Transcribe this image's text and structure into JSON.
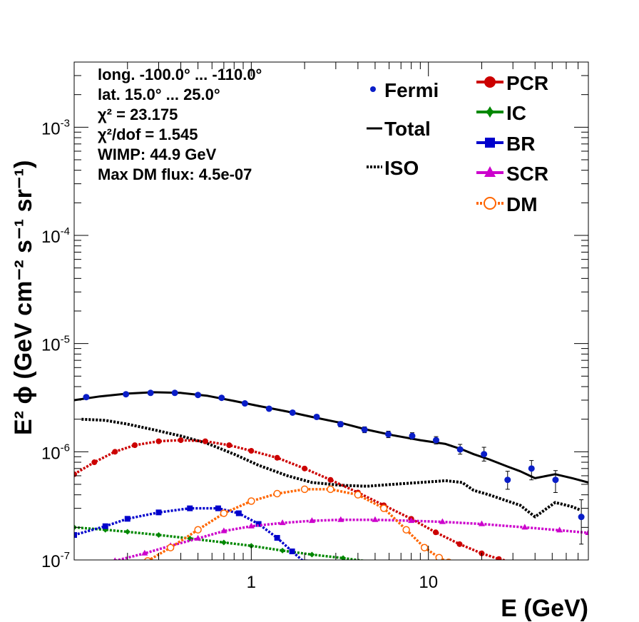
{
  "chart_data": {
    "type": "line",
    "title": "",
    "xlabel": "E (GeV)",
    "ylabel": "E² ϕ (GeV cm⁻² s⁻¹ sr⁻¹)",
    "x_scale": "log",
    "y_scale": "log",
    "xlim": [
      0.1,
      80
    ],
    "ylim": [
      1e-07,
      0.004
    ],
    "grid": false,
    "x_ticks": [
      {
        "v": 1,
        "label": "1"
      },
      {
        "v": 10,
        "label": "10"
      }
    ],
    "y_ticks": [
      {
        "v": 1e-07,
        "base": "10",
        "exp": "-7"
      },
      {
        "v": 1e-06,
        "base": "10",
        "exp": "-6"
      },
      {
        "v": 1e-05,
        "base": "10",
        "exp": "-5"
      },
      {
        "v": 0.0001,
        "base": "10",
        "exp": "-4"
      },
      {
        "v": 0.001,
        "base": "10",
        "exp": "-3"
      }
    ],
    "info_lines": [
      "long. -100.0° ... -110.0°",
      "lat. 15.0° ... 25.0°",
      "χ² = 23.175",
      "χ²/dof = 1.545",
      "WIMP: 44.9 GeV",
      "Max DM flux: 4.5e-07"
    ],
    "legend": {
      "left": [
        {
          "label": "Fermi",
          "key": "fermi"
        },
        {
          "label": "Total",
          "key": "total"
        },
        {
          "label": "ISO",
          "key": "iso"
        }
      ],
      "right": [
        {
          "label": "PCR",
          "key": "pcr"
        },
        {
          "label": "IC",
          "key": "ic"
        },
        {
          "label": "BR",
          "key": "br"
        },
        {
          "label": "SCR",
          "key": "scr"
        },
        {
          "label": "DM",
          "key": "dm"
        }
      ]
    },
    "colors": {
      "fermi": "#0a1ec8",
      "total": "#000000",
      "iso": "#000000",
      "pcr": "#cc0000",
      "ic": "#008800",
      "br": "#0000cc",
      "scr": "#cc00cc",
      "dm": "#ff6600"
    },
    "fermi": {
      "x": [
        0.117,
        0.196,
        0.27,
        0.37,
        0.5,
        0.68,
        0.92,
        1.26,
        1.71,
        2.34,
        3.19,
        4.36,
        5.94,
        8.1,
        11.05,
        15.1,
        20.6,
        28.0,
        38.2,
        52.2,
        73.0
      ],
      "y": [
        3.2e-06,
        3.4e-06,
        3.5e-06,
        3.5e-06,
        3.35e-06,
        3.15e-06,
        2.8e-06,
        2.5e-06,
        2.3e-06,
        2.1e-06,
        1.8e-06,
        1.6e-06,
        1.45e-06,
        1.4e-06,
        1.28e-06,
        1.05e-06,
        9.5e-07,
        5.5e-07,
        7e-07,
        5.5e-07,
        2.5e-07
      ],
      "err_lo": [
        1e-07,
        1e-07,
        1e-07,
        1e-07,
        1e-07,
        1e-07,
        1e-07,
        1e-07,
        1e-07,
        1e-07,
        1e-07,
        1e-07,
        1e-07,
        1e-07,
        1e-07,
        1e-07,
        1.3e-07,
        1e-07,
        1.5e-07,
        1.3e-07,
        1.1e-07
      ],
      "err_hi": [
        1e-07,
        1e-07,
        1e-07,
        1e-07,
        1e-07,
        1e-07,
        1e-07,
        1e-07,
        1e-07,
        1e-07,
        1e-07,
        1e-07,
        1e-07,
        1e-07,
        1e-07,
        1.2e-07,
        1.5e-07,
        1.1e-07,
        1.3e-07,
        1.2e-07,
        1.1e-07
      ]
    },
    "series": [
      {
        "key": "total",
        "x": [
          0.1,
          0.14,
          0.2,
          0.28,
          0.4,
          0.56,
          0.8,
          1.1,
          1.6,
          2.2,
          3.2,
          4.5,
          6.3,
          9,
          12.5,
          15.5,
          18,
          22,
          28,
          33,
          40,
          52,
          65,
          80
        ],
        "y": [
          3e-06,
          3.25e-06,
          3.45e-06,
          3.55e-06,
          3.5e-06,
          3.3e-06,
          2.95e-06,
          2.65e-06,
          2.35e-06,
          2.1e-06,
          1.85e-06,
          1.6e-06,
          1.42e-06,
          1.28e-06,
          1.18e-06,
          1.05e-06,
          9.5e-07,
          8.5e-07,
          7.3e-07,
          6.6e-07,
          5.7e-07,
          6.2e-07,
          5.7e-07,
          5.2e-07
        ]
      },
      {
        "key": "iso",
        "x": [
          0.11,
          0.15,
          0.2,
          0.28,
          0.4,
          0.56,
          0.8,
          1.1,
          1.6,
          2.2,
          3.2,
          4.5,
          6.3,
          9,
          12.5,
          15.5,
          18,
          22,
          28,
          33,
          40,
          52,
          65,
          72
        ],
        "y": [
          2e-06,
          1.95e-06,
          1.8e-06,
          1.6e-06,
          1.4e-06,
          1.2e-06,
          9.5e-07,
          7.5e-07,
          6e-07,
          5.2e-07,
          4.9e-07,
          4.8e-07,
          5e-07,
          5.2e-07,
          5.4e-07,
          5.2e-07,
          4.4e-07,
          4e-07,
          3.5e-07,
          3.2e-07,
          2.5e-07,
          3.4e-07,
          3.1e-07,
          2.9e-07
        ]
      },
      {
        "key": "pcr",
        "x": [
          0.1,
          0.13,
          0.17,
          0.22,
          0.3,
          0.4,
          0.55,
          0.75,
          1.0,
          1.4,
          2.0,
          2.8,
          4.0,
          5.6,
          8,
          11,
          15,
          20,
          25,
          30
        ],
        "y": [
          6.2e-07,
          8e-07,
          1e-06,
          1.15e-06,
          1.25e-06,
          1.28e-06,
          1.25e-06,
          1.15e-06,
          1.02e-06,
          8.8e-07,
          7e-07,
          5.5e-07,
          4.2e-07,
          3.2e-07,
          2.4e-07,
          1.8e-07,
          1.4e-07,
          1.15e-07,
          1.02e-07,
          9.5e-08
        ]
      },
      {
        "key": "ic",
        "x": [
          0.1,
          0.15,
          0.2,
          0.3,
          0.45,
          0.7,
          1.0,
          1.5,
          2.2,
          3.3,
          5
        ],
        "y": [
          2e-07,
          1.9e-07,
          1.82e-07,
          1.7e-07,
          1.58e-07,
          1.45e-07,
          1.35e-07,
          1.22e-07,
          1.12e-07,
          1.04e-07,
          9.5e-08
        ]
      },
      {
        "key": "br",
        "x": [
          0.1,
          0.15,
          0.2,
          0.3,
          0.45,
          0.65,
          0.85,
          1.1,
          1.4,
          1.7,
          2.0
        ],
        "y": [
          1.7e-07,
          2.05e-07,
          2.4e-07,
          2.75e-07,
          3e-07,
          3e-07,
          2.7e-07,
          2.15e-07,
          1.6e-07,
          1.2e-07,
          9.5e-08
        ]
      },
      {
        "key": "scr",
        "x": [
          0.17,
          0.25,
          0.35,
          0.5,
          0.7,
          1.0,
          1.5,
          2.2,
          3.2,
          5,
          8,
          12,
          20,
          35,
          55,
          80
        ],
        "y": [
          9.8e-08,
          1.15e-07,
          1.35e-07,
          1.58e-07,
          1.85e-07,
          2.05e-07,
          2.2e-07,
          2.3e-07,
          2.35e-07,
          2.35e-07,
          2.3e-07,
          2.25e-07,
          2.15e-07,
          2e-07,
          1.88e-07,
          1.78e-07
        ]
      },
      {
        "key": "dm",
        "x": [
          0.26,
          0.35,
          0.5,
          0.7,
          1.0,
          1.4,
          2.0,
          2.8,
          4.0,
          5.6,
          7.5,
          9.5,
          11.5,
          13
        ],
        "y": [
          9.8e-08,
          1.3e-07,
          1.9e-07,
          2.7e-07,
          3.5e-07,
          4.1e-07,
          4.5e-07,
          4.5e-07,
          4e-07,
          3e-07,
          1.9e-07,
          1.3e-07,
          1.05e-07,
          9.5e-08
        ]
      }
    ]
  }
}
